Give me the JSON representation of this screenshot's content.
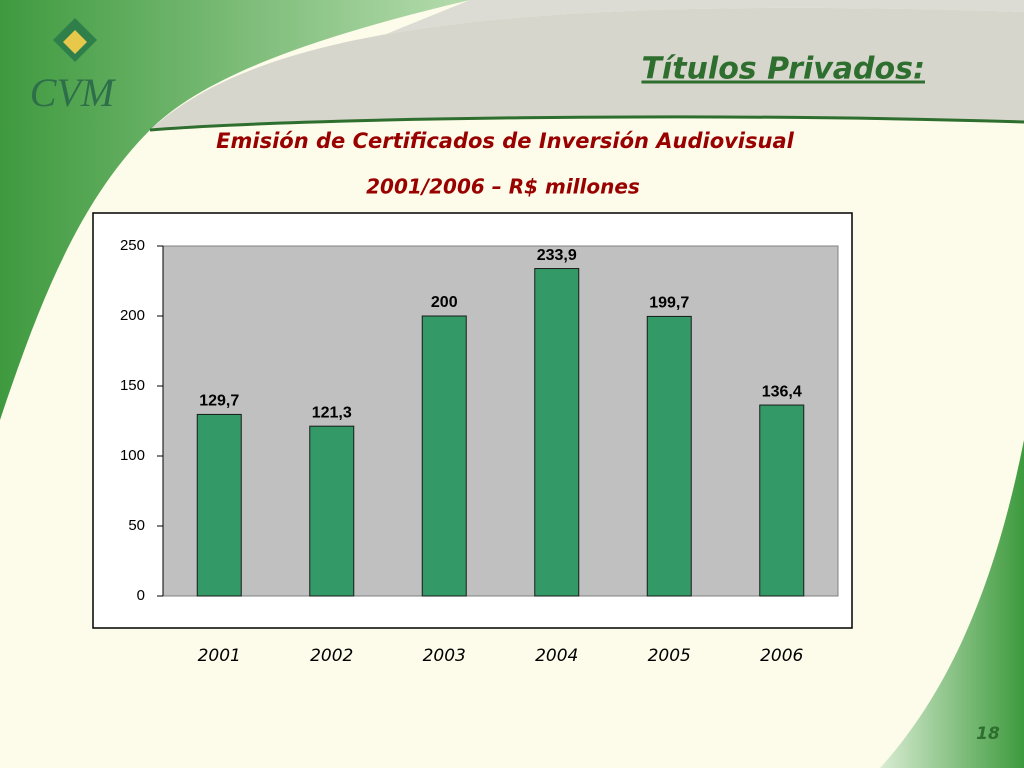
{
  "slide": {
    "logo": "CVM",
    "heading": "Títulos Privados:",
    "page_number": "18"
  },
  "chart_data": {
    "type": "bar",
    "title": "Emisión de Certificados de Inversión Audiovisual",
    "subtitle": "2001/2006 – R$ millones",
    "categories": [
      "2001",
      "2002",
      "2003",
      "2004",
      "2005",
      "2006"
    ],
    "values": [
      129.7,
      121.3,
      200,
      233.9,
      199.7,
      136.4
    ],
    "value_labels": [
      "129,7",
      "121,3",
      "200",
      "233,9",
      "199,7",
      "136,4"
    ],
    "color": "#339966",
    "ylim": [
      0,
      250
    ],
    "yticks": [
      0,
      50,
      100,
      150,
      200,
      250
    ],
    "grid": false
  }
}
